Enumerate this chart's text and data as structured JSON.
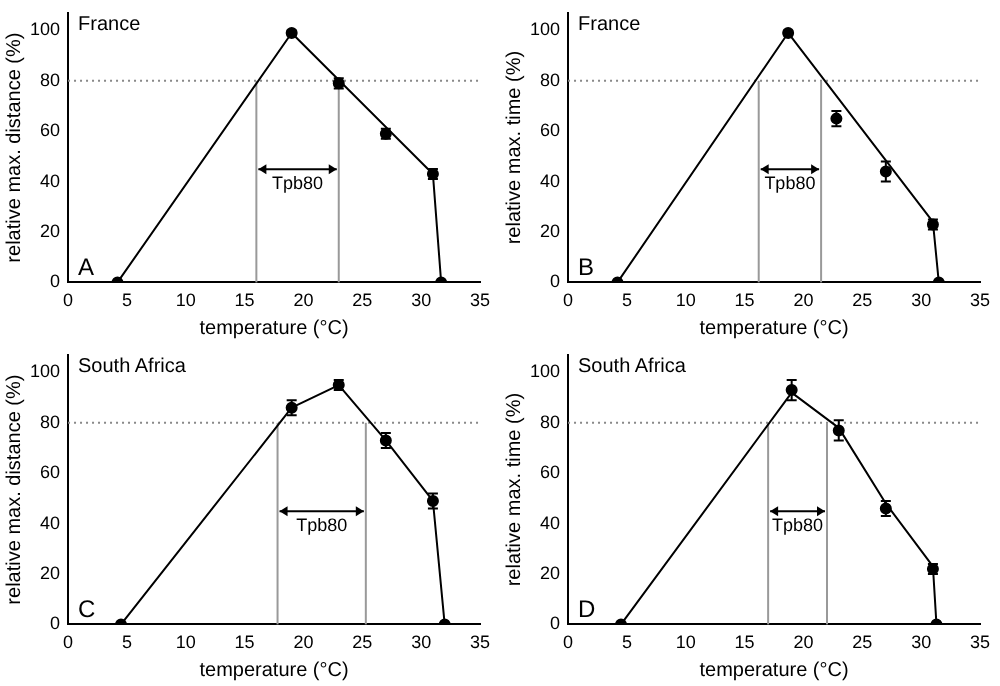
{
  "chart_data": [
    {
      "type": "scatter",
      "title": "France",
      "xlabel": "temperature (°C)",
      "ylabel": "relative max. distance (%)",
      "annotations": [
        "A",
        "Tpb80"
      ],
      "series": [
        {
          "marker": "circle",
          "color": "#000000",
          "x": [
            4.2,
            19,
            23,
            27,
            31,
            31.7
          ],
          "values": [
            0,
            99,
            79,
            59,
            43,
            0
          ],
          "errors": [
            null,
            1,
            2,
            2,
            2,
            null
          ]
        },
        {
          "type": "line",
          "marker": "none",
          "color": "#000000",
          "x": [
            4.2,
            19,
            31,
            31.7
          ],
          "values": [
            0,
            99,
            43,
            0
          ]
        }
      ],
      "xlim": [
        0,
        35
      ],
      "xticks": [
        0,
        5,
        10,
        15,
        20,
        25,
        30,
        35
      ],
      "ylim": [
        0,
        107
      ],
      "yticks": [
        0,
        20,
        40,
        60,
        80,
        100
      ],
      "ref_lines": [
        {
          "axis": "y",
          "value": 80,
          "line_style": "dotted",
          "color": "#888888"
        },
        {
          "axis": "x",
          "value": 16,
          "color": "#999999"
        },
        {
          "axis": "x",
          "value": 23,
          "color": "#999999"
        }
      ],
      "grid": false,
      "legend": false
    },
    {
      "type": "scatter",
      "title": "France",
      "xlabel": "temperature (°C)",
      "ylabel": "relative max. time (%)",
      "annotations": [
        "B",
        "Tpb80"
      ],
      "series": [
        {
          "marker": "circle",
          "color": "#000000",
          "x": [
            4.2,
            18.7,
            22.8,
            27,
            31,
            31.5
          ],
          "values": [
            0,
            99,
            65,
            44,
            23,
            0
          ],
          "errors": [
            null,
            1,
            3,
            4,
            2,
            null
          ]
        },
        {
          "type": "line",
          "marker": "none",
          "color": "#000000",
          "x": [
            4.2,
            18.7,
            31,
            31.5
          ],
          "values": [
            0,
            99,
            24,
            0
          ]
        }
      ],
      "xlim": [
        0,
        35
      ],
      "xticks": [
        0,
        5,
        10,
        15,
        20,
        25,
        30,
        35
      ],
      "ylim": [
        0,
        107
      ],
      "yticks": [
        0,
        20,
        40,
        60,
        80,
        100
      ],
      "ref_lines": [
        {
          "axis": "y",
          "value": 80,
          "line_style": "dotted",
          "color": "#888888"
        },
        {
          "axis": "x",
          "value": 16.2,
          "color": "#999999"
        },
        {
          "axis": "x",
          "value": 21.5,
          "color": "#999999"
        }
      ],
      "grid": false,
      "legend": false
    },
    {
      "type": "scatter",
      "title": "South Africa",
      "xlabel": "temperature (°C)",
      "ylabel": "relative max. distance (%)",
      "annotations": [
        "C",
        "Tpb80"
      ],
      "series": [
        {
          "marker": "circle",
          "color": "#000000",
          "x": [
            4.5,
            19,
            23,
            27,
            31,
            32
          ],
          "values": [
            0,
            86,
            95,
            73,
            49,
            0
          ],
          "errors": [
            null,
            3,
            2,
            3,
            3,
            null
          ]
        },
        {
          "type": "line",
          "color": "#000000",
          "x": [
            4.5,
            19,
            23,
            27,
            31,
            32
          ],
          "values": [
            0,
            86,
            95,
            73,
            49,
            0
          ]
        }
      ],
      "xlim": [
        0,
        35
      ],
      "xticks": [
        0,
        5,
        10,
        15,
        20,
        25,
        30,
        35
      ],
      "ylim": [
        0,
        107
      ],
      "yticks": [
        0,
        20,
        40,
        60,
        80,
        100
      ],
      "ref_lines": [
        {
          "axis": "y",
          "value": 80,
          "line_style": "dotted",
          "color": "#888888"
        },
        {
          "axis": "x",
          "value": 17.8,
          "color": "#999999"
        },
        {
          "axis": "x",
          "value": 25.3,
          "color": "#999999"
        }
      ],
      "grid": false,
      "legend": false
    },
    {
      "type": "scatter",
      "title": "South Africa",
      "xlabel": "temperature (°C)",
      "ylabel": "relative max. time (%)",
      "annotations": [
        "D",
        "Tpb80"
      ],
      "series": [
        {
          "marker": "circle",
          "color": "#000000",
          "x": [
            4.5,
            19,
            23,
            27,
            31,
            31.3
          ],
          "values": [
            0,
            93,
            77,
            46,
            22,
            0
          ],
          "errors": [
            null,
            4,
            4,
            3,
            2,
            null
          ]
        },
        {
          "type": "line",
          "marker": "none",
          "color": "#000000",
          "x": [
            4.5,
            19,
            23,
            27,
            31,
            31.3
          ],
          "values": [
            0,
            92,
            78,
            48,
            23,
            0
          ]
        }
      ],
      "xlim": [
        0,
        35
      ],
      "xticks": [
        0,
        5,
        10,
        15,
        20,
        25,
        30,
        35
      ],
      "ylim": [
        0,
        107
      ],
      "yticks": [
        0,
        20,
        40,
        60,
        80,
        100
      ],
      "ref_lines": [
        {
          "axis": "y",
          "value": 80,
          "line_style": "dotted",
          "color": "#888888"
        },
        {
          "axis": "x",
          "value": 17,
          "color": "#999999"
        },
        {
          "axis": "x",
          "value": 22,
          "color": "#999999"
        }
      ],
      "grid": false,
      "legend": false
    }
  ]
}
